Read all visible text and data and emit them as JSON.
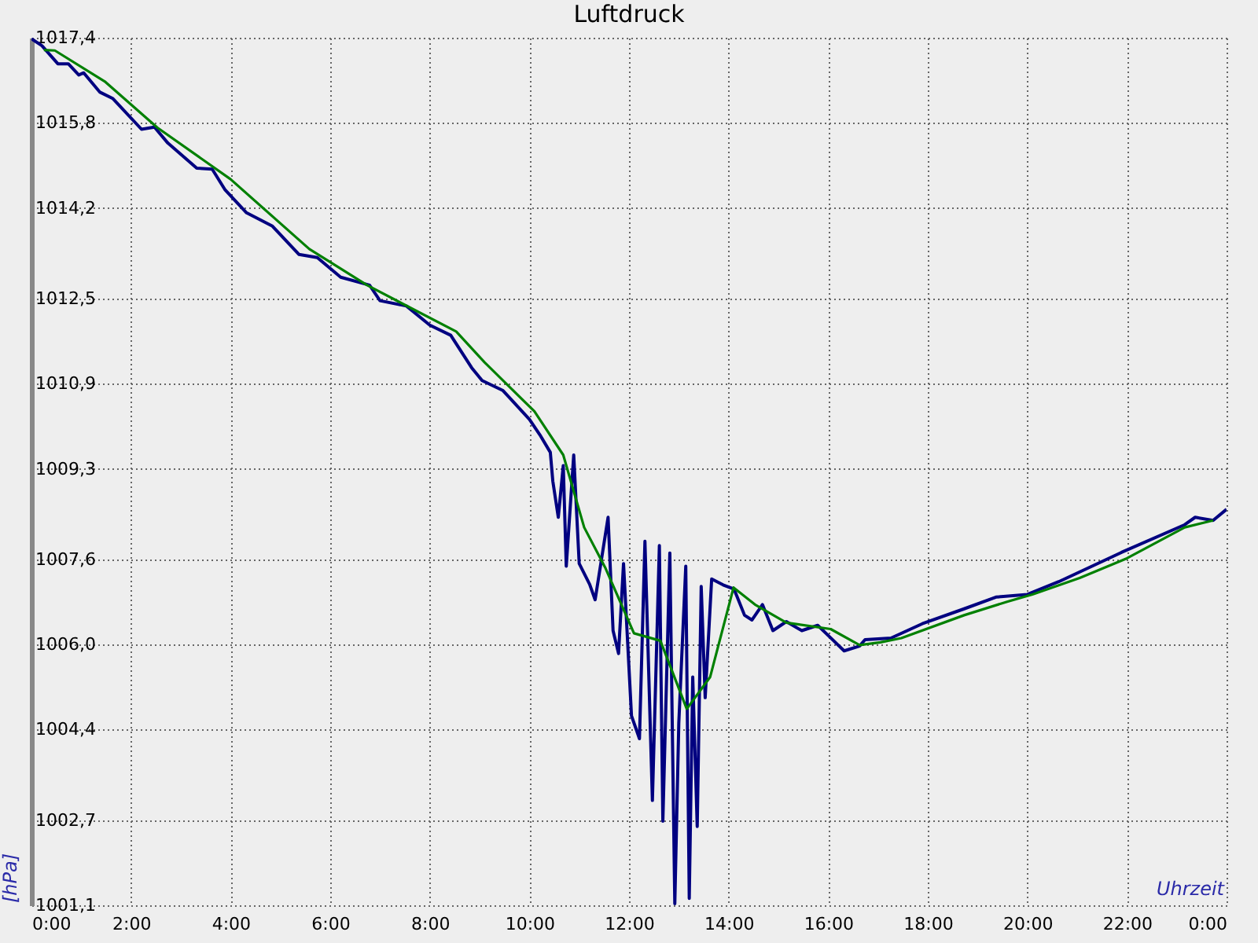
{
  "chart_data": {
    "type": "line",
    "title": "Luftdruck",
    "xlabel": "Uhrzeit",
    "ylabel": "[hPa]",
    "xlim": [
      0,
      24
    ],
    "xticks": [
      {
        "value": 0,
        "label": "0:00"
      },
      {
        "value": 2,
        "label": "2:00"
      },
      {
        "value": 4,
        "label": "4:00"
      },
      {
        "value": 6,
        "label": "6:00"
      },
      {
        "value": 8,
        "label": "8:00"
      },
      {
        "value": 10,
        "label": "10:00"
      },
      {
        "value": 12,
        "label": "12:00"
      },
      {
        "value": 14,
        "label": "14:00"
      },
      {
        "value": 16,
        "label": "16:00"
      },
      {
        "value": 18,
        "label": "18:00"
      },
      {
        "value": 20,
        "label": "20:00"
      },
      {
        "value": 22,
        "label": "22:00"
      },
      {
        "value": 24,
        "label": "0:00"
      }
    ],
    "ylim": [
      1001.1,
      1017.4
    ],
    "yticks": [
      {
        "value": 1001.1,
        "label": "1001,1"
      },
      {
        "value": 1002.7,
        "label": "1002,7"
      },
      {
        "value": 1004.4,
        "label": "1004,4"
      },
      {
        "value": 1006.0,
        "label": "1006,0"
      },
      {
        "value": 1007.6,
        "label": "1007,6"
      },
      {
        "value": 1009.3,
        "label": "1009,3"
      },
      {
        "value": 1010.9,
        "label": "1010,9"
      },
      {
        "value": 1012.5,
        "label": "1012,5"
      },
      {
        "value": 1014.2,
        "label": "1014,2"
      },
      {
        "value": 1015.8,
        "label": "1015,8"
      },
      {
        "value": 1017.4,
        "label": "1017,4"
      }
    ],
    "grid": true,
    "line_style": "solid",
    "marker": "none",
    "series": [
      {
        "color": "#000080",
        "x": [
          0,
          0.21,
          0.53,
          0.74,
          0.95,
          1.05,
          1.37,
          1.63,
          2.21,
          2.47,
          2.74,
          3.32,
          3.63,
          3.89,
          4.32,
          4.84,
          5.37,
          5.74,
          6.21,
          6.79,
          7.0,
          7.53,
          8.0,
          8.42,
          8.84,
          9.05,
          9.47,
          10.0,
          10.21,
          10.42,
          10.47,
          10.58,
          10.68,
          10.74,
          10.89,
          11.0,
          11.21,
          11.32,
          11.58,
          11.68,
          11.79,
          11.89,
          12.05,
          12.21,
          12.32,
          12.47,
          12.61,
          12.68,
          12.82,
          12.92,
          13.0,
          13.14,
          13.21,
          13.28,
          13.37,
          13.45,
          13.53,
          13.66,
          13.89,
          14.11,
          14.32,
          14.47,
          14.68,
          14.89,
          15.16,
          15.47,
          15.79,
          16.0,
          16.32,
          16.63,
          16.74,
          17.26,
          17.89,
          18.73,
          19.37,
          20.0,
          20.63,
          21.89,
          23.16,
          23.37,
          23.73,
          24.0
        ],
        "values": [
          1017.38,
          1017.25,
          1016.91,
          1016.91,
          1016.7,
          1016.74,
          1016.38,
          1016.26,
          1015.68,
          1015.72,
          1015.42,
          1014.95,
          1014.93,
          1014.54,
          1014.11,
          1013.86,
          1013.33,
          1013.27,
          1012.9,
          1012.75,
          1012.46,
          1012.36,
          1012.0,
          1011.81,
          1011.2,
          1010.96,
          1010.77,
          1010.23,
          1009.94,
          1009.61,
          1009.07,
          1008.39,
          1009.36,
          1007.47,
          1009.56,
          1007.52,
          1007.13,
          1006.84,
          1008.39,
          1006.26,
          1005.83,
          1007.52,
          1004.66,
          1004.23,
          1007.94,
          1003.07,
          1007.86,
          1002.68,
          1007.72,
          1001.13,
          1004.52,
          1007.47,
          1001.23,
          1005.39,
          1002.58,
          1007.09,
          1005.0,
          1007.23,
          1007.12,
          1007.04,
          1006.55,
          1006.46,
          1006.75,
          1006.26,
          1006.43,
          1006.26,
          1006.36,
          1006.17,
          1005.88,
          1005.97,
          1006.09,
          1006.12,
          1006.39,
          1006.67,
          1006.89,
          1006.94,
          1007.18,
          1007.73,
          1008.25,
          1008.39,
          1008.33,
          1008.54
        ]
      },
      {
        "color": "#008000",
        "x": [
          0.25,
          0.47,
          1.47,
          2.53,
          4.0,
          5.58,
          6.74,
          8.53,
          9.1,
          10.1,
          10.68,
          11.1,
          11.53,
          12.1,
          12.63,
          13.16,
          13.63,
          14.1,
          14.53,
          15.16,
          16.05,
          16.63,
          17.05,
          17.47,
          18.73,
          19.58,
          20.1,
          21.05,
          22.0,
          23.16,
          23.73
        ],
        "values": [
          1017.17,
          1017.16,
          1016.58,
          1015.71,
          1014.74,
          1013.43,
          1012.75,
          1011.88,
          1011.3,
          1010.38,
          1009.56,
          1008.2,
          1007.43,
          1006.21,
          1006.07,
          1004.79,
          1005.39,
          1007.07,
          1006.75,
          1006.41,
          1006.29,
          1005.99,
          1006.04,
          1006.12,
          1006.55,
          1006.8,
          1006.94,
          1007.25,
          1007.62,
          1008.2,
          1008.33
        ]
      }
    ]
  }
}
